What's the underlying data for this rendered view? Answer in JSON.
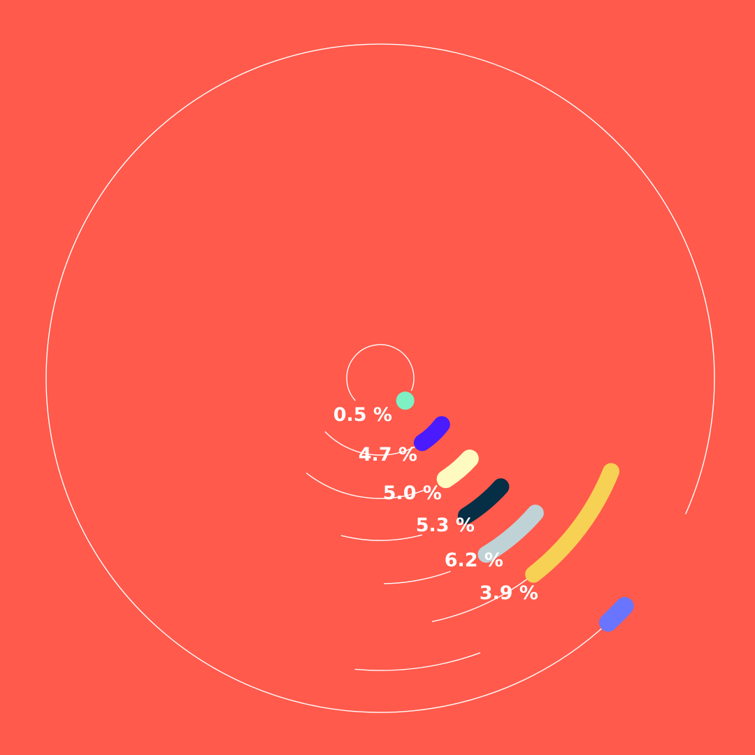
{
  "colors": {
    "background": "#FF5A4C",
    "track": "#FFFFFF"
  },
  "chart_data": {
    "type": "radial-bar",
    "unit": "%",
    "series": [
      {
        "label": "0.5 %",
        "value": 0.5,
        "color": "#7EF0C3"
      },
      {
        "label": "4.7 %",
        "value": 4.7,
        "color": "#4A1BFF"
      },
      {
        "label": "5.0 %",
        "value": 5.0,
        "color": "#FFFABF"
      },
      {
        "label": "5.3 %",
        "value": 5.3,
        "color": "#062E45"
      },
      {
        "label": "6.2 %",
        "value": 6.2,
        "color": "#BFD2D6"
      },
      {
        "label": "3.9 %",
        "value": 3.9,
        "color": "#F7D153"
      }
    ],
    "outer_marker": {
      "color": "#6A75FF"
    }
  }
}
